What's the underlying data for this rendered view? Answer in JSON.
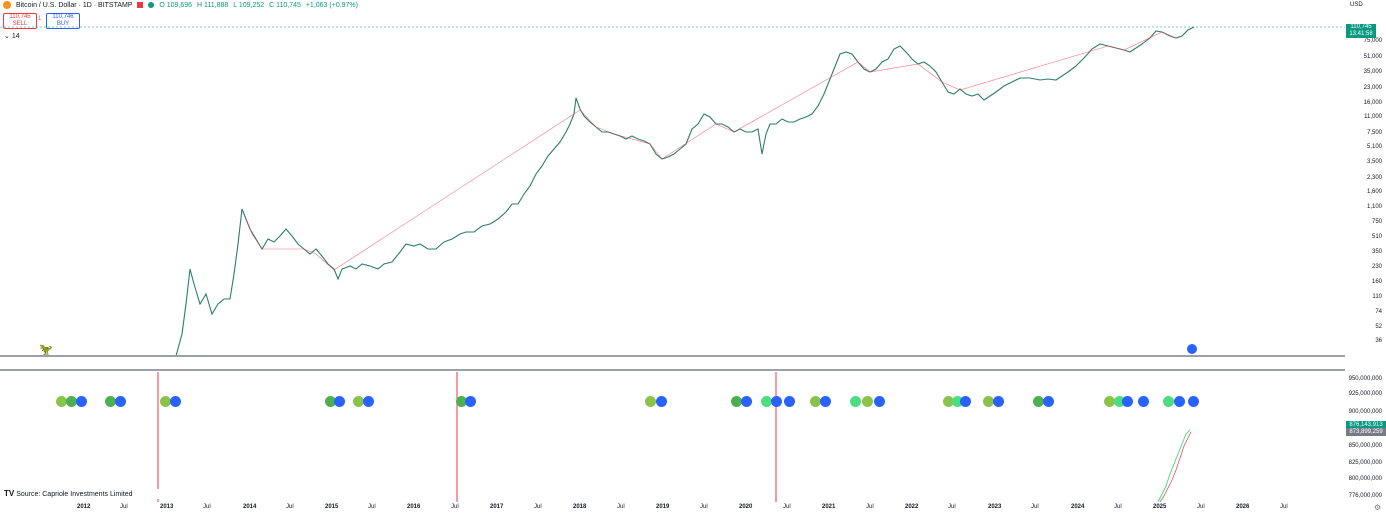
{
  "header": {
    "symbol": "Bitcoin / U.S. Dollar · 1D · BITSTAMP",
    "open": "O 109,696",
    "high": "H 111,888",
    "low": "L 109,252",
    "close": "C 110,745",
    "change": "+1,063 (+0.97%)"
  },
  "trade": {
    "sell_price": "110,745",
    "sell_label": "SELL",
    "spread": "1",
    "buy_price": "110,746",
    "buy_label": "BUY"
  },
  "indicator_row": {
    "collapse_icon": "chevron-down-icon",
    "value": "14"
  },
  "price_axis": {
    "currency": "USD",
    "labels": [
      "75,000",
      "51,000",
      "35,000",
      "23,000",
      "16,000",
      "11,000",
      "7,500",
      "5,100",
      "3,500",
      "2,300",
      "1,600",
      "1,100",
      "750",
      "510",
      "350",
      "230",
      "160",
      "110",
      "74",
      "52",
      "36"
    ]
  },
  "price_tag": {
    "price": "110,745",
    "countdown": "13:41:58"
  },
  "sub_axis": {
    "labels": [
      "950,000,000",
      "925,000,000",
      "900,000,000",
      "850,000,000",
      "825,000,000",
      "800,000,000",
      "776,000,000"
    ],
    "tag1": "876,143,913",
    "tag2": "873,899,259"
  },
  "date_axis": [
    "2012",
    "Jul",
    "2013",
    "Jul",
    "2014",
    "Jul",
    "2015",
    "Jul",
    "2016",
    "Jul",
    "2017",
    "Jul",
    "2018",
    "Jul",
    "2019",
    "Jul",
    "2020",
    "Jul",
    "2021",
    "Jul",
    "2022",
    "Jul",
    "2023",
    "Jul",
    "2024",
    "Jul",
    "2025",
    "Jul",
    "2026",
    "Jul"
  ],
  "source": "Source: Capriole Investments Limited",
  "colors": {
    "up": "#089981",
    "down": "#f23645",
    "capitulation": "#4caf50",
    "buy": "#2962ff",
    "line": "#4ade80"
  }
}
